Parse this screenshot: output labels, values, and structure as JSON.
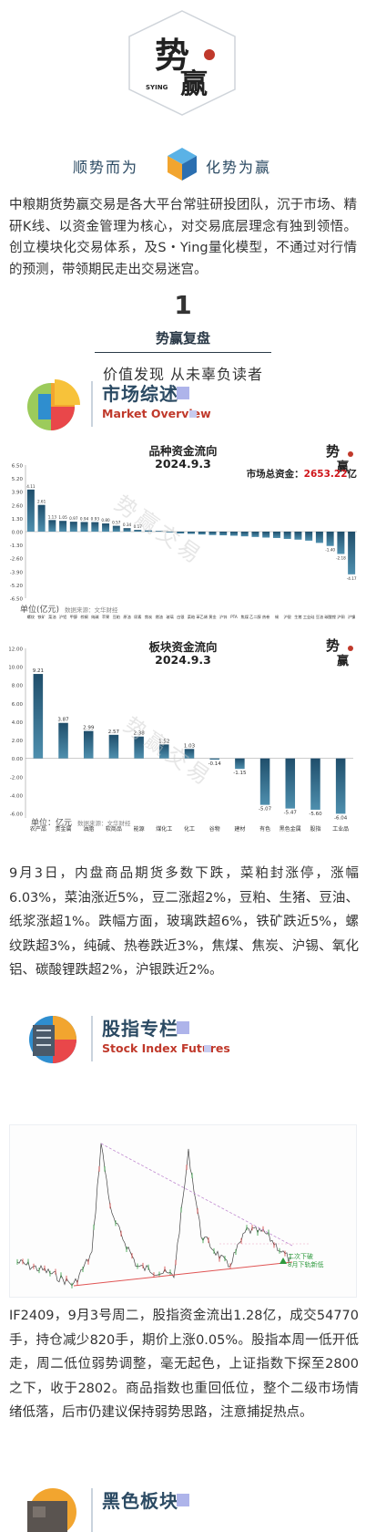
{
  "header": {
    "logo_text": "势赢",
    "logo_sub": "SYING",
    "tagline_left": "顺势而为",
    "tagline_right": "化势为赢"
  },
  "intro": "中粮期货势赢交易是各大平台常驻研投团队，沉于市场、精研K线、以资金管理为核心，对交易底层理念有独到领悟。创立模块化交易体系，及S・Ying量化模型，不通过对行情的预测，带领期民走出交易迷宫。",
  "section": {
    "number": "1",
    "title": "势赢复盘",
    "subtitle": "价值发现 从未辜负读者"
  },
  "market": {
    "title": "市场综述",
    "subtitle": "Market Overview"
  },
  "stock": {
    "title": "股指专栏",
    "subtitle": "Stock Index Futures"
  },
  "black": {
    "title": "黑色板块"
  },
  "watermark": "势赢交易",
  "chart1_meta": {
    "total_label": "市场总资金：",
    "total_value": "2653.22",
    "total_unit": "亿",
    "unit_label": "单位(亿元)",
    "unit_small": "数据来源：文华财经"
  },
  "chart2_meta": {
    "unit_label": "单位：亿元",
    "unit_small": "数据来源：文华财经"
  },
  "chart_data": [
    {
      "type": "bar",
      "title": "品种资金流向",
      "subtitle": "2024.9.3",
      "ylim": [
        -6.5,
        6.5
      ],
      "yticks": [
        6.5,
        5.2,
        3.9,
        2.6,
        1.3,
        0.0,
        -1.3,
        -2.6,
        -3.9,
        -5.2,
        -6.5
      ],
      "grid": false,
      "categories": [
        "螺纹",
        "铁矿",
        "菜油",
        "沪铝",
        "甲醇",
        "棕榈",
        "纯碱",
        "苹果",
        "豆粕",
        "原油",
        "尿素",
        "焦炭",
        "燃油",
        "玻璃",
        "白银",
        "菜粕",
        "苯乙烯",
        "黄金",
        "沪锌",
        "PTA",
        "焦煤",
        "乙二醇",
        "热卷",
        "锡",
        "沪银",
        "生猪",
        "工业硅",
        "豆油",
        "碳酸锂",
        "沪铜",
        "沪镍"
      ],
      "values": [
        4.11,
        2.61,
        1.13,
        1.05,
        0.97,
        0.94,
        0.93,
        0.8,
        0.57,
        0.34,
        0.17,
        0.12,
        0.07,
        -0.07,
        -0.18,
        -0.22,
        -0.28,
        -0.33,
        -0.36,
        -0.4,
        -0.46,
        -0.52,
        -0.58,
        -0.62,
        -0.71,
        -0.78,
        -0.88,
        -1.1,
        -1.4,
        -2.18,
        -4.17
      ],
      "value_labels": [
        "4.11",
        "2.61",
        "1.13",
        "1.05",
        "0.97",
        "0.94",
        "0.93",
        "0.80",
        "0.57",
        "0.34",
        "0.17",
        "",
        "",
        "",
        "",
        "",
        "",
        "",
        "",
        "",
        "",
        "",
        "",
        "",
        "",
        "",
        "",
        "",
        "-1.40",
        "-2.18",
        "-4.17"
      ]
    },
    {
      "type": "bar",
      "title": "板块资金流向",
      "subtitle": "2024.9.3",
      "ylim": [
        -6.5,
        12
      ],
      "yticks": [
        12.0,
        10.0,
        8.0,
        6.0,
        4.0,
        2.0,
        0.0,
        -2.0,
        -4.0,
        -6.0
      ],
      "grid": false,
      "categories": [
        "农产品",
        "贵金属",
        "油脂",
        "软商品",
        "能源",
        "煤化工",
        "化工",
        "谷物",
        "建材",
        "有色",
        "黑色金属",
        "股指",
        "工业品"
      ],
      "values": [
        9.21,
        3.87,
        2.99,
        2.57,
        2.38,
        1.52,
        1.03,
        -0.14,
        -1.15,
        -5.07,
        -5.47,
        -5.6,
        -6.04
      ],
      "value_labels": [
        "9.21",
        "3.87",
        "2.99",
        "2.57",
        "2.38",
        "1.52",
        "1.03",
        "-0.14",
        "-1.15",
        "-5.07",
        "-5.47",
        "-5.60",
        "-6.04"
      ]
    }
  ],
  "paragraph1": "9月3日，内盘商品期货多数下跌，菜粕封涨停，涨幅6.03%，菜油涨近5%，豆二涨超2%，豆粕、生猪、豆油、纸浆涨超1%。跌幅方面，玻璃跌超6%，铁矿跌近5%，螺纹跌超3%，纯碱、热卷跌近3%，焦煤、焦炭、沪锡、氧化铝、碳酸锂跌超2%，沪银跌近2%。",
  "candle": {
    "note1": "二次下破",
    "note2": "8月下轨新低"
  },
  "paragraph2": "IF2409，9月3号周二，股指资金流出1.28亿，成交54770手，持仓减少820手，期价上涨0.05%。股指本周一低开低走，周二低位弱势调整，毫无起色，上证指数下探至2800之下，收于2802。商品指数也重回低位，整个二级市场情绪低落，后市仍建议保持弱势思路，注意捕捉热点。",
  "colors": {
    "accent_red": "#c0392b",
    "title_blue": "#2b4a63",
    "bar_dark": "#1f4e6b",
    "bar_light": "#4e8fae"
  }
}
